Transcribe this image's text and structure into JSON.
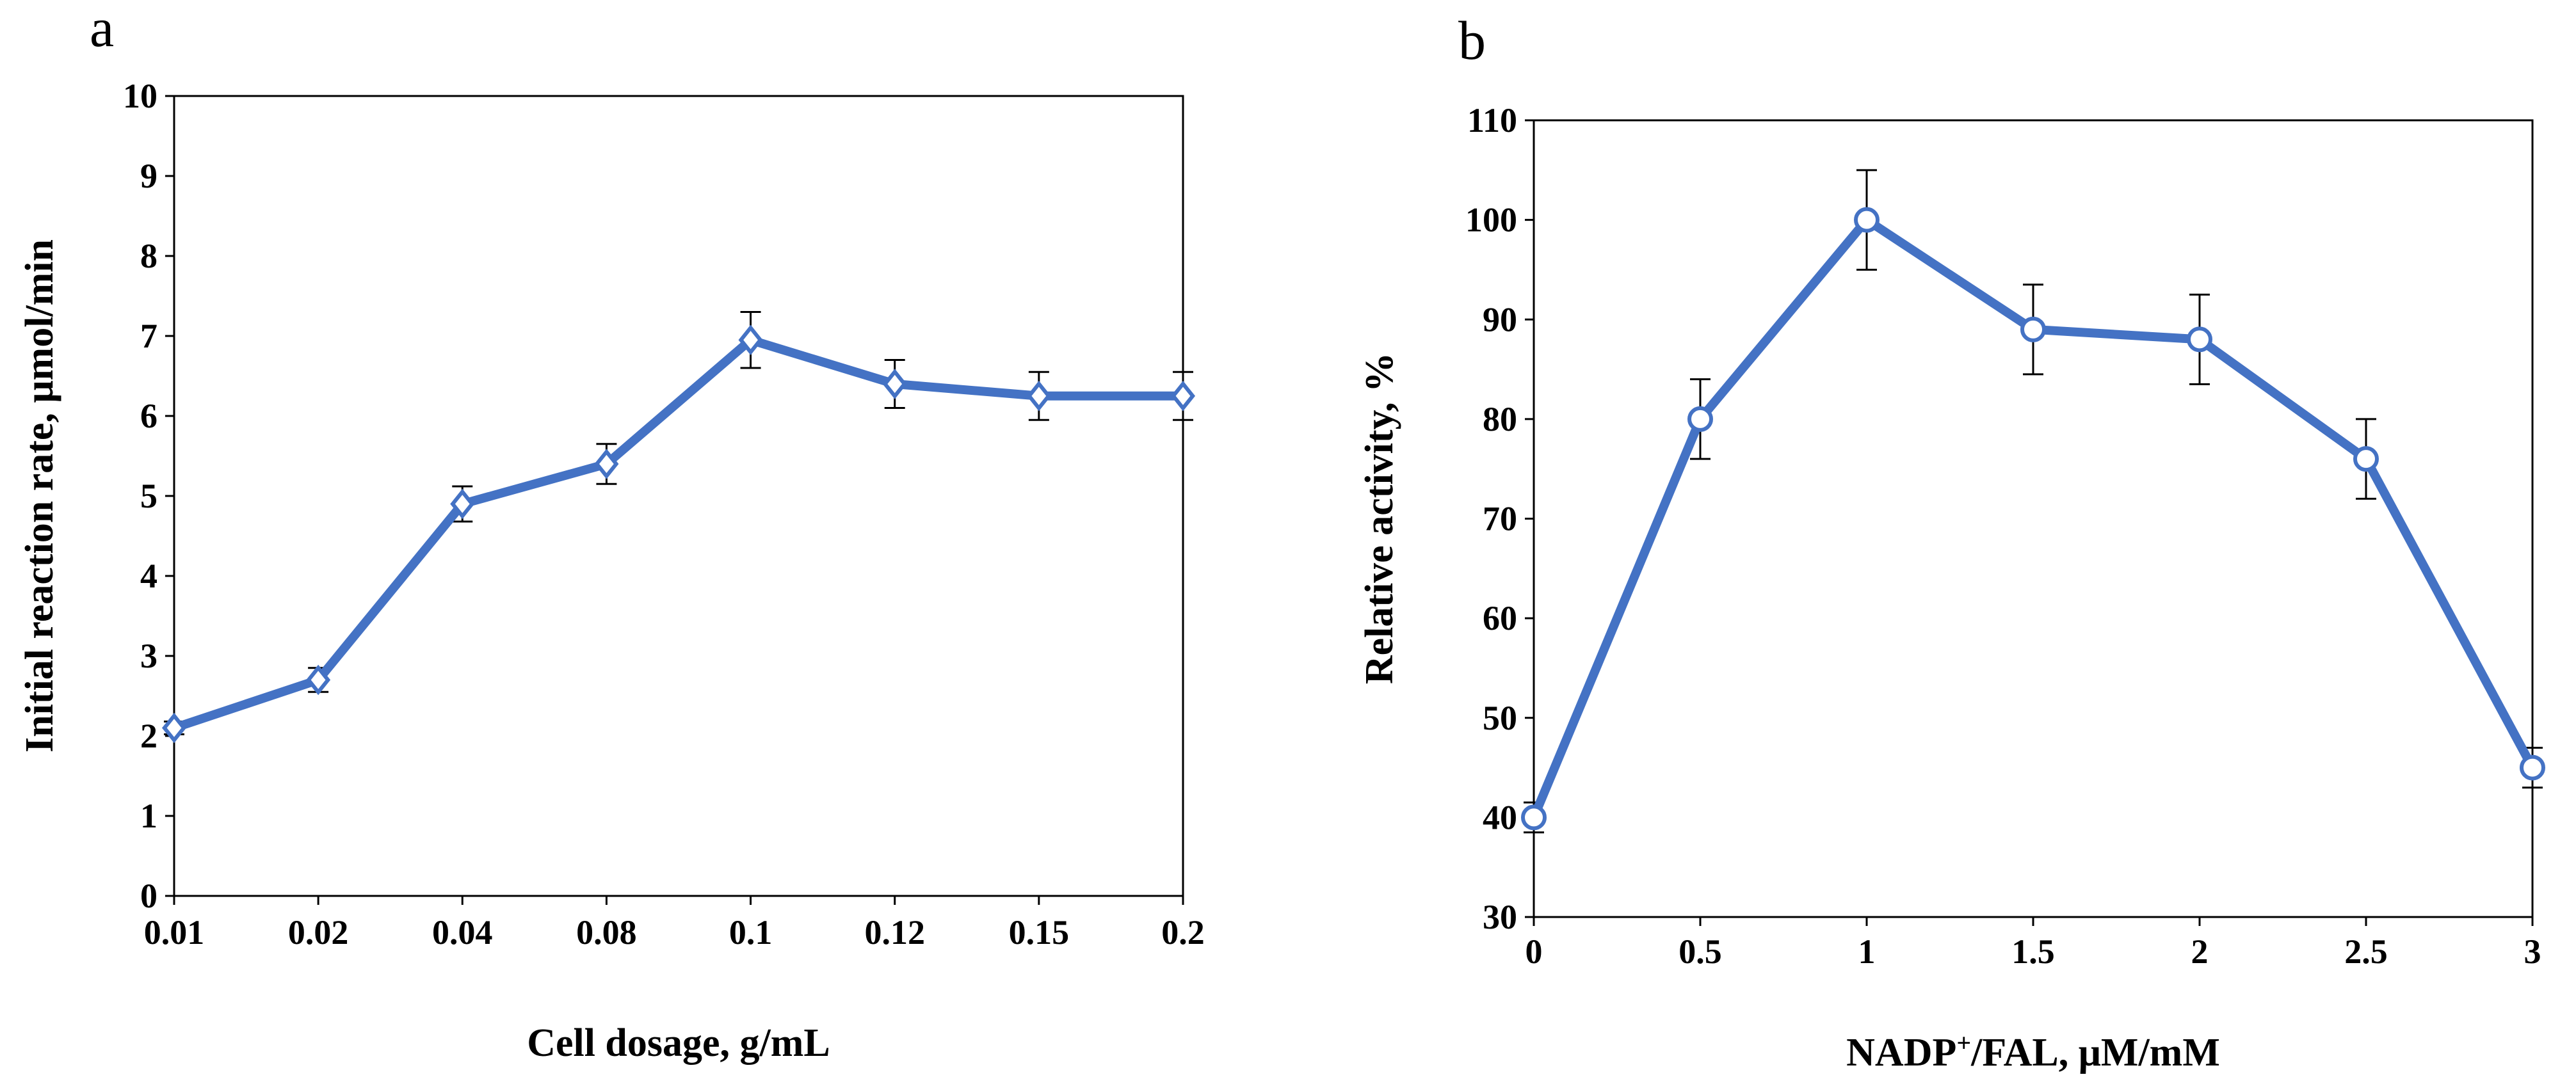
{
  "chart_data": [
    {
      "panel": "a",
      "type": "line",
      "title": "",
      "xlabel": "Cell dosage, g/mL",
      "ylabel": "Initial reaction rate, μmol/min",
      "categories": [
        "0.01",
        "0.02",
        "0.04",
        "0.08",
        "0.1",
        "0.12",
        "0.15",
        "0.2"
      ],
      "ylim": [
        0,
        10
      ],
      "yticks": [
        "0",
        "1",
        "2",
        "3",
        "4",
        "5",
        "6",
        "7",
        "8",
        "9",
        "10"
      ],
      "grid": false,
      "marker": "diamond",
      "series": [
        {
          "name": "Initial reaction rate",
          "values": [
            2.1,
            2.7,
            4.9,
            5.4,
            6.95,
            6.4,
            6.25,
            6.25
          ],
          "errors": [
            0.08,
            0.15,
            0.22,
            0.25,
            0.35,
            0.3,
            0.3,
            0.3
          ]
        }
      ]
    },
    {
      "panel": "b",
      "type": "line",
      "title": "",
      "xlabel_main": "NADP",
      "xlabel_sup": "+",
      "xlabel_rest": "/FAL, μM/mM",
      "ylabel": "Relative activity, %",
      "categories": [
        "0",
        "0.5",
        "1",
        "1.5",
        "2",
        "2.5",
        "3"
      ],
      "ylim": [
        30,
        110
      ],
      "yticks": [
        "30",
        "40",
        "50",
        "60",
        "70",
        "80",
        "90",
        "100",
        "110"
      ],
      "grid": false,
      "marker": "circle",
      "series": [
        {
          "name": "Relative activity",
          "values": [
            40,
            80,
            100,
            89,
            88,
            76,
            45
          ],
          "errors": [
            1.5,
            4,
            5,
            4.5,
            4.5,
            4,
            2
          ]
        }
      ]
    }
  ],
  "colors": {
    "line": "#4472C4",
    "axis": "#000000",
    "error": "#000000",
    "marker_fill": "#ffffff"
  }
}
